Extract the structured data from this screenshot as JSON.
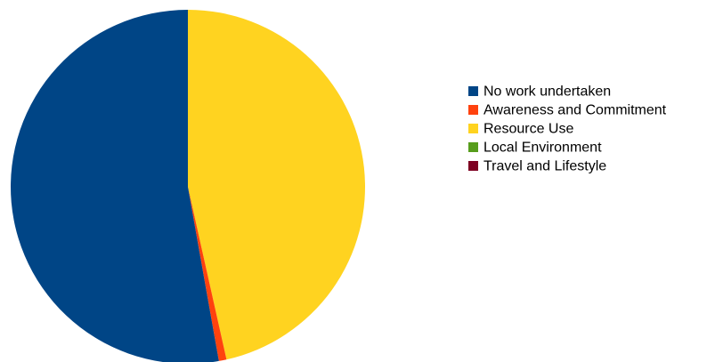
{
  "chart_data": {
    "type": "pie",
    "title": "",
    "categories": [
      "No work undertaken",
      "Awareness and Commitment",
      "Resource Use",
      "Local Environment",
      "Travel and Lifestyle"
    ],
    "values": [
      52.8,
      0.7,
      46.5,
      0.0,
      0.0
    ],
    "colors": [
      "#004586",
      "#ff420e",
      "#ffd320",
      "#579d1c",
      "#7e0021"
    ],
    "legend_position": "right",
    "start_angle": "12 o'clock",
    "direction": "clockwise",
    "series_order_clockwise": [
      "Resource Use",
      "Awareness and Commitment",
      "No work undertaken"
    ]
  }
}
